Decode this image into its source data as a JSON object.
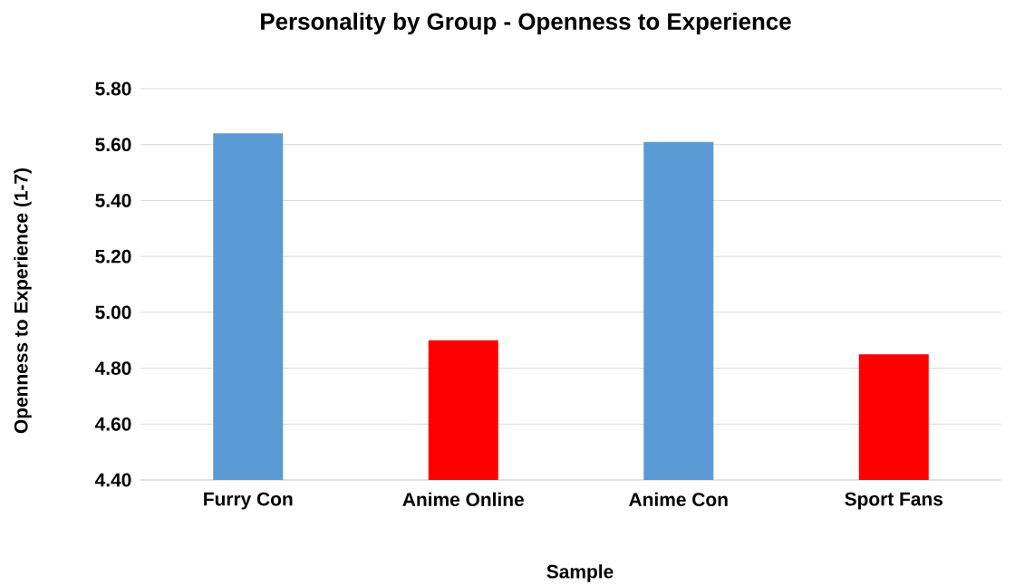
{
  "chart_data": {
    "type": "bar",
    "title": "Personality by Group - Openness to Experience",
    "xlabel": "Sample",
    "ylabel": "Openness to Experience (1-7)",
    "categories": [
      "Furry Con",
      "Anime Online",
      "Anime Con",
      "Sport Fans"
    ],
    "values": [
      5.64,
      4.9,
      5.61,
      4.85
    ],
    "colors": [
      "#5b9bd5",
      "#ff0000",
      "#5b9bd5",
      "#ff0000"
    ],
    "ylim": [
      4.4,
      5.8
    ],
    "yticks": [
      {
        "value": 4.4,
        "label": "4.40"
      },
      {
        "value": 4.6,
        "label": "4.60"
      },
      {
        "value": 4.8,
        "label": "4.80"
      },
      {
        "value": 5.0,
        "label": "5.00"
      },
      {
        "value": 5.2,
        "label": "5.20"
      },
      {
        "value": 5.4,
        "label": "5.40"
      },
      {
        "value": 5.6,
        "label": "5.60"
      },
      {
        "value": 5.8,
        "label": "5.80"
      }
    ],
    "grid": "y"
  }
}
